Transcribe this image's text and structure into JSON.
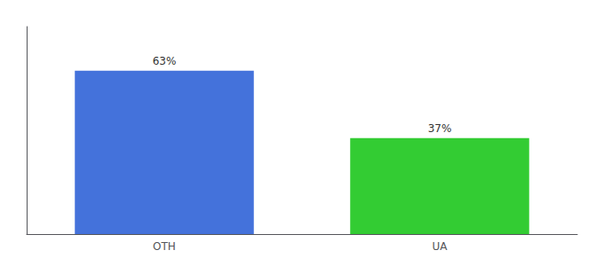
{
  "chart_data": {
    "type": "bar",
    "categories": [
      "OTH",
      "UA"
    ],
    "values": [
      63,
      37
    ],
    "value_labels": [
      "63%",
      "37%"
    ],
    "colors": [
      "#4472db",
      "#33cc33"
    ],
    "ylim": [
      0,
      80
    ],
    "data_labels": true,
    "tick_labels": "x",
    "grid": false
  }
}
